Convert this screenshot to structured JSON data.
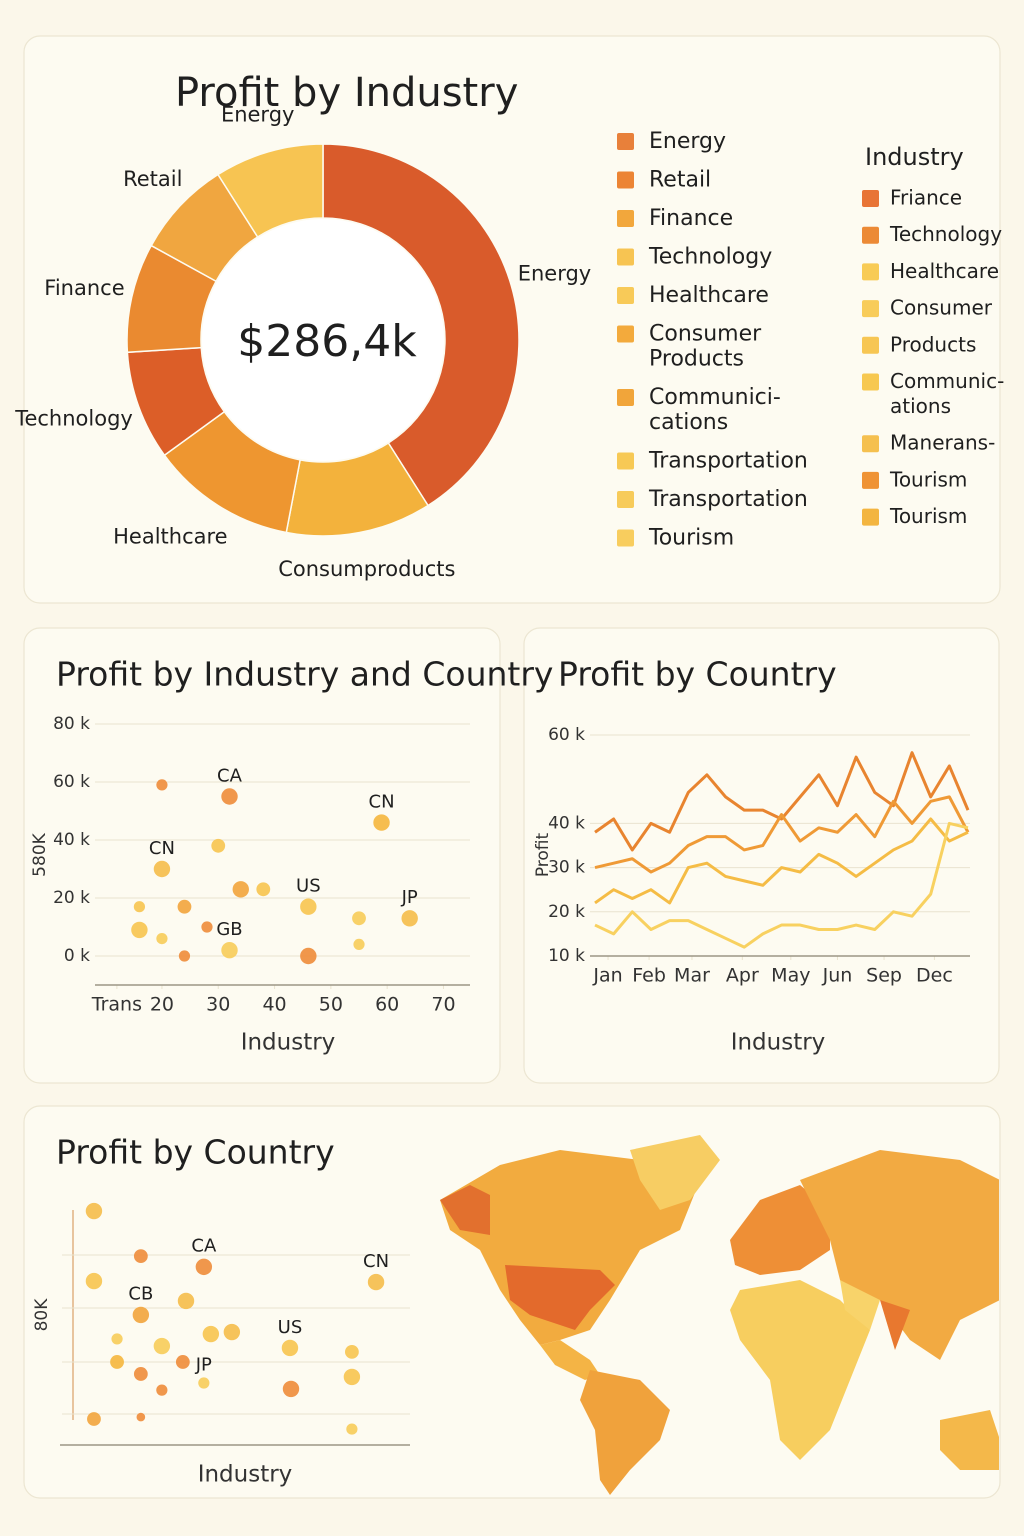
{
  "chart_data": [
    {
      "type": "donut",
      "title": "Profit by Industry",
      "center_label": "$286,4k",
      "categories": [
        "Energy",
        "Consumproducts",
        "Healthcare",
        "Technology",
        "Finance",
        "Retail",
        "Energy"
      ],
      "values": [
        41,
        12,
        12,
        9,
        9,
        8,
        9
      ],
      "colors": [
        "#d95b2b",
        "#f3b23c",
        "#ee9630",
        "#dc5e28",
        "#ea8a30",
        "#f0a640",
        "#f7c452"
      ],
      "legends": [
        {
          "items": [
            {
              "label": [
                "Energy"
              ],
              "color": "#e8803a"
            },
            {
              "label": [
                "Retail"
              ],
              "color": "#ec8434"
            },
            {
              "label": [
                "Finance"
              ],
              "color": "#f2a73c"
            },
            {
              "label": [
                "Technology"
              ],
              "color": "#f7c452"
            },
            {
              "label": [
                "Healthcare"
              ],
              "color": "#f8ca58"
            },
            {
              "label": [
                "Consumer",
                "Products"
              ],
              "color": "#f3aa3c"
            },
            {
              "label": [
                "Communici-",
                "cations"
              ],
              "color": "#f1a53a"
            },
            {
              "label": [
                "Transportation"
              ],
              "color": "#f7c955"
            },
            {
              "label": [
                "Transportation"
              ],
              "color": "#f7cb5a"
            },
            {
              "label": [
                "Tourism"
              ],
              "color": "#f8cd5e"
            }
          ]
        },
        {
          "title": "Industry",
          "items": [
            {
              "label": [
                "Friance"
              ],
              "color": "#e87436"
            },
            {
              "label": [
                "Technology"
              ],
              "color": "#ec8a36"
            },
            {
              "label": [
                "Healthcare"
              ],
              "color": "#f8cb55"
            },
            {
              "label": [
                "Consumer"
              ],
              "color": "#f8cc5a"
            },
            {
              "label": [
                "Products"
              ],
              "color": "#f7c653"
            },
            {
              "label": [
                "Communic-",
                "ations"
              ],
              "color": "#f7c850"
            },
            {
              "label": [
                "Manerans-"
              ],
              "color": "#f5c04f"
            },
            {
              "label": [
                "Tourism"
              ],
              "color": "#ef9335"
            },
            {
              "label": [
                "Tourism"
              ],
              "color": "#f3b540"
            }
          ]
        }
      ]
    },
    {
      "type": "scatter",
      "title": "Profit by Industry and Country",
      "x_label": "Industry",
      "y_label": "580K",
      "xlim": [
        9,
        74
      ],
      "ylim": [
        -10,
        80
      ],
      "xticks": [
        {
          "value": 12,
          "label": "Trans"
        },
        20,
        30,
        40,
        50,
        60,
        70
      ],
      "yticks": [
        {
          "value": 80,
          "label": "80 k"
        },
        {
          "value": 60,
          "label": "60 k"
        },
        {
          "value": 40,
          "label": "40 k"
        },
        {
          "value": 20,
          "label": "20 k"
        },
        {
          "value": 0,
          "label": "0 k"
        }
      ],
      "grid": true,
      "x": [
        20,
        32,
        59,
        16,
        16,
        20,
        20,
        24,
        24,
        28,
        30,
        32,
        34,
        38,
        46,
        46,
        55,
        55,
        64
      ],
      "values": [
        59,
        55,
        46,
        17,
        9,
        6,
        30,
        17,
        0,
        10,
        38,
        2,
        23,
        23,
        17,
        0,
        13,
        4,
        13
      ],
      "sizes": [
        1,
        2,
        2,
        1,
        2,
        1,
        2,
        1.5,
        1,
        1,
        1.5,
        2,
        2,
        1.5,
        2,
        2,
        1.5,
        1,
        2
      ],
      "colors": [
        "#ef8e3e",
        "#ef8e3e",
        "#f5b741",
        "#f7c652",
        "#f7c652",
        "#f7cd5c",
        "#f5be4e",
        "#f2a640",
        "#ef8e3e",
        "#ef8e3e",
        "#f7c652",
        "#f7cd5c",
        "#f2a640",
        "#f7c652",
        "#f7c652",
        "#ef8e3e",
        "#f7cd5c",
        "#f7cd5c",
        "#f5be4e"
      ],
      "labels": [
        null,
        "CA",
        "CN",
        null,
        null,
        null,
        "CN",
        null,
        null,
        null,
        null,
        "GB",
        null,
        null,
        "US",
        null,
        null,
        null,
        "JP"
      ]
    },
    {
      "type": "line",
      "title": "Profit by Country",
      "x_label": "Industry",
      "y_label": "Profit",
      "x": [
        0,
        1,
        2,
        3,
        4,
        5,
        6,
        7,
        8,
        9,
        10,
        11,
        12,
        13,
        14,
        15,
        16,
        17,
        18,
        19,
        20
      ],
      "xlim": [
        0,
        20
      ],
      "ylim": [
        10,
        60
      ],
      "xticks": [
        {
          "value": 0.7,
          "label": "Jan"
        },
        {
          "value": 2.9,
          "label": "Feb"
        },
        {
          "value": 5.2,
          "label": "Mar"
        },
        {
          "value": 7.9,
          "label": "Apr"
        },
        {
          "value": 10.5,
          "label": "May"
        },
        {
          "value": 13,
          "label": "Jun"
        },
        {
          "value": 15.5,
          "label": "Sep"
        },
        {
          "value": 18.2,
          "label": "Dec"
        }
      ],
      "yticks": [
        {
          "value": 60,
          "label": "60 k"
        },
        {
          "value": 40,
          "label": "40 k"
        },
        {
          "value": 30,
          "label": "30 k"
        },
        {
          "value": 20,
          "label": "20 k"
        },
        {
          "value": 10,
          "label": "10 k"
        }
      ],
      "grid": true,
      "series": [
        {
          "color": "#e8842f",
          "values": [
            38,
            41,
            34,
            40,
            38,
            47,
            51,
            46,
            43,
            43,
            41,
            46,
            51,
            44,
            55,
            47,
            44,
            56,
            46,
            53,
            43
          ]
        },
        {
          "color": "#ef9a36",
          "values": [
            30,
            31,
            32,
            29,
            31,
            35,
            37,
            37,
            34,
            35,
            42,
            36,
            39,
            38,
            42,
            37,
            45,
            40,
            45,
            46,
            38
          ]
        },
        {
          "color": "#f5bc45",
          "values": [
            22,
            25,
            23,
            25,
            22,
            30,
            31,
            28,
            27,
            26,
            30,
            29,
            33,
            31,
            28,
            31,
            34,
            36,
            41,
            36,
            38
          ]
        },
        {
          "color": "#f8d160",
          "values": [
            17,
            15,
            20,
            16,
            18,
            18,
            16,
            14,
            12,
            15,
            17,
            17,
            16,
            16,
            17,
            16,
            20,
            19,
            24,
            40,
            39
          ]
        }
      ]
    },
    {
      "type": "scatter",
      "title": "Profit by Country",
      "x_label": "Industry",
      "y_label": "80K",
      "xlim": [
        0,
        100
      ],
      "ylim": [
        0,
        100
      ],
      "grid": false,
      "x": [
        9.7,
        23.1,
        41.1,
        90.3,
        9.7,
        23.1,
        36,
        16.3,
        29.1,
        43.1,
        49.1,
        65.7,
        83.4,
        16.3,
        23.1,
        35.1,
        41.1,
        29.1,
        66,
        83.4,
        9.7,
        23.1,
        83.4
      ],
      "values": [
        95.5,
        77.1,
        72.7,
        66.5,
        66.9,
        53.1,
        58.8,
        43.3,
        40.4,
        45.3,
        46.1,
        39.6,
        38,
        33.9,
        29,
        33.9,
        25.3,
        22.4,
        22.9,
        27.8,
        10.6,
        11.4,
        6.5
      ],
      "sizes": [
        2,
        1.5,
        2,
        2,
        2,
        2,
        2,
        1,
        2,
        2,
        2,
        2,
        1.5,
        1.5,
        1.5,
        1.5,
        1,
        1,
        2,
        2,
        1.5,
        0.5,
        1
      ],
      "colors": [
        "#f5be4e",
        "#ef8e3e",
        "#ef8e3e",
        "#f5be4e",
        "#f7c652",
        "#f2a640",
        "#f5be4e",
        "#f7cd5c",
        "#f7cd5c",
        "#f7c652",
        "#f5be4e",
        "#f7c652",
        "#f7c652",
        "#f5b741",
        "#ef8e3e",
        "#ef8e3e",
        "#f7cd5c",
        "#ef8e3e",
        "#ef8e3e",
        "#f7c652",
        "#f2a640",
        "#ef8e3e",
        "#f7cd5c"
      ],
      "labels": [
        null,
        null,
        "CA",
        "CN",
        null,
        "CB",
        null,
        null,
        null,
        null,
        null,
        "US",
        null,
        null,
        null,
        null,
        "JP",
        null,
        null,
        null,
        null,
        null,
        null
      ]
    }
  ]
}
